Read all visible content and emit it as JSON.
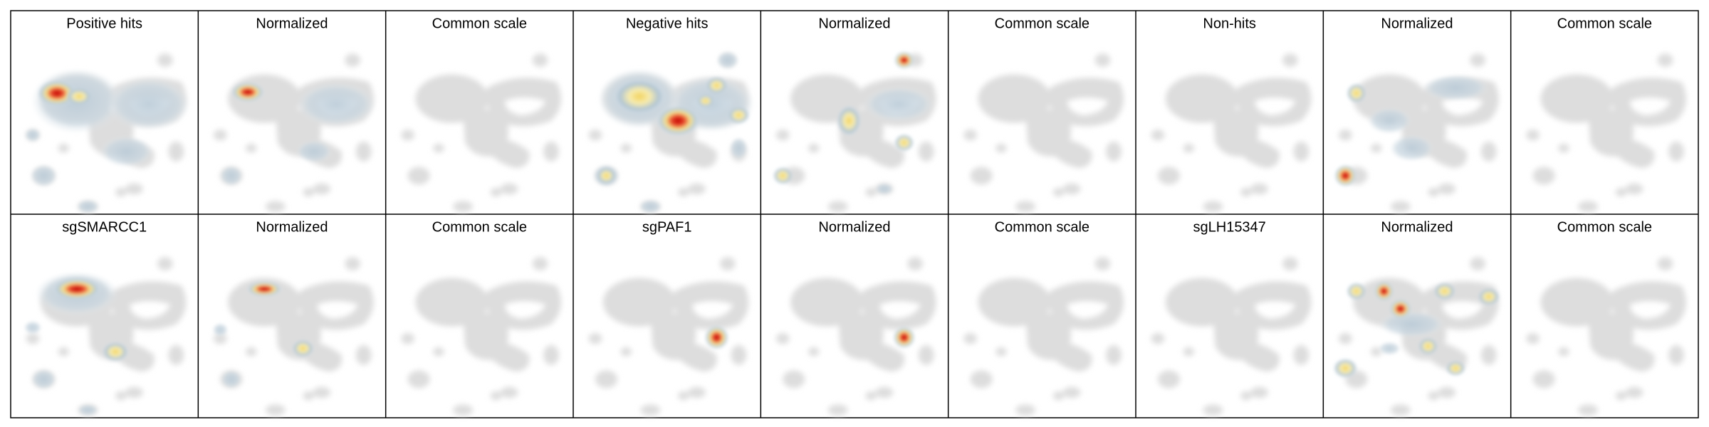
{
  "panels": [
    {
      "title": "Positive hits"
    },
    {
      "title": "Normalized"
    },
    {
      "title": "Common scale"
    },
    {
      "title": "Negative hits"
    },
    {
      "title": "Normalized"
    },
    {
      "title": "Common scale"
    },
    {
      "title": "Non-hits"
    },
    {
      "title": "Normalized"
    },
    {
      "title": "Common scale"
    },
    {
      "title": "sgSMARCC1"
    },
    {
      "title": "Normalized"
    },
    {
      "title": "Common scale"
    },
    {
      "title": "sgPAF1"
    },
    {
      "title": "Normalized"
    },
    {
      "title": "Common scale"
    },
    {
      "title": "sgLH15347"
    },
    {
      "title": "Normalized"
    },
    {
      "title": "Common scale"
    }
  ]
}
